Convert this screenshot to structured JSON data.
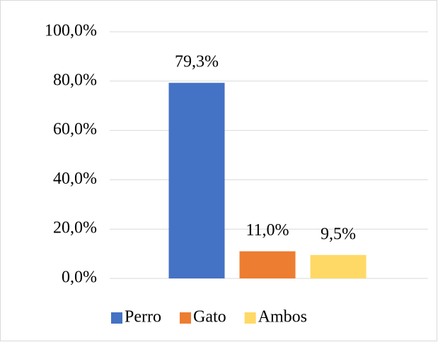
{
  "chart_data": {
    "type": "bar",
    "categories": [
      null
    ],
    "series": [
      {
        "name": "Perro",
        "color": "#4472c4",
        "values": [
          79.3
        ],
        "value_labels": [
          "79,3%"
        ]
      },
      {
        "name": "Gato",
        "color": "#ed7d31",
        "values": [
          11.0
        ],
        "value_labels": [
          "11,0%"
        ]
      },
      {
        "name": "Ambos",
        "color": "#ffd966",
        "values": [
          9.5
        ],
        "value_labels": [
          "9,5%"
        ]
      }
    ],
    "ylim": [
      0,
      100
    ],
    "yticks": [
      {
        "value": 0,
        "label": "0,0%"
      },
      {
        "value": 20,
        "label": "20,0%"
      },
      {
        "value": 40,
        "label": "40,0%"
      },
      {
        "value": 60,
        "label": "60,0%"
      },
      {
        "value": 80,
        "label": "80,0%"
      },
      {
        "value": 100,
        "label": "100,0%"
      }
    ],
    "grid": true,
    "legend": "bottom"
  }
}
